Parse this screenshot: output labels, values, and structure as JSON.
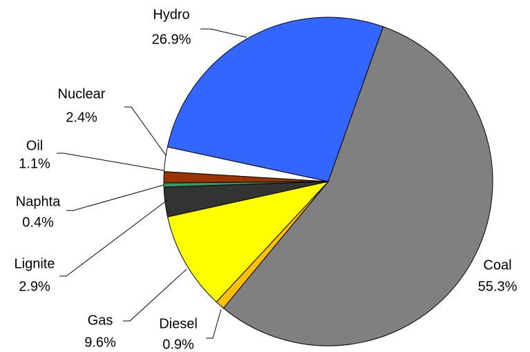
{
  "chart_data": {
    "type": "pie",
    "categories": [
      "Coal",
      "Diesel",
      "Gas",
      "Lignite",
      "Naphta",
      "Oil",
      "Nuclear",
      "Hydro"
    ],
    "values": [
      55.3,
      0.9,
      9.6,
      2.9,
      0.4,
      1.1,
      2.4,
      26.9
    ],
    "value_labels": [
      "55.3%",
      "0.9%",
      "9.6%",
      "2.9%",
      "0.4%",
      "1.1%",
      "2.4%",
      "26.9%"
    ],
    "colors": [
      "#808080",
      "#ffc000",
      "#ffff00",
      "#333333",
      "#339966",
      "#993300",
      "#ffffff",
      "#3366ff"
    ]
  }
}
